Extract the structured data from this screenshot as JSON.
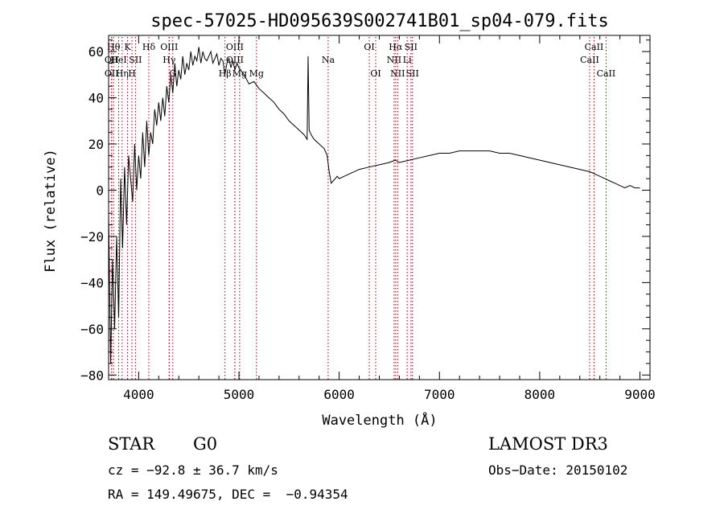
{
  "chart_data": {
    "type": "line",
    "title": "spec-57025-HD095639S002741B01_sp04-079.fits",
    "xlabel": "Wavelength (Å)",
    "ylabel": "Flux (relative)",
    "xlim": [
      3700,
      9100
    ],
    "ylim": [
      -82,
      67
    ],
    "xticks": [
      4000,
      5000,
      6000,
      7000,
      8000,
      9000
    ],
    "yticks": [
      -80,
      -60,
      -40,
      -20,
      0,
      20,
      40,
      60
    ],
    "grid": false,
    "line_color": "#000000",
    "marker_color": "#a00000",
    "series": [
      {
        "x": [
          3700,
          3720,
          3740,
          3760,
          3780,
          3800,
          3820,
          3840,
          3860,
          3880,
          3900,
          3920,
          3940,
          3960,
          3980,
          4000,
          4020,
          4040,
          4060,
          4080,
          4100,
          4120,
          4140,
          4160,
          4180,
          4200,
          4220,
          4240,
          4260,
          4280,
          4300,
          4320,
          4340,
          4360,
          4380,
          4400,
          4420,
          4440,
          4460,
          4480,
          4500,
          4520,
          4540,
          4560,
          4580,
          4600,
          4620,
          4640,
          4660,
          4680,
          4700,
          4720,
          4740,
          4760,
          4780,
          4800,
          4820,
          4840,
          4860,
          4880,
          4900,
          4920,
          4940,
          4960,
          4980,
          5000,
          5050,
          5100,
          5150,
          5200,
          5250,
          5300,
          5350,
          5400,
          5450,
          5500,
          5550,
          5600,
          5650,
          5680,
          5690,
          5700,
          5720,
          5750,
          5800,
          5850,
          5880,
          5900,
          5920,
          5940,
          5960,
          5980,
          6000,
          6050,
          6100,
          6200,
          6300,
          6400,
          6500,
          6560,
          6600,
          6700,
          6800,
          6900,
          7000,
          7100,
          7200,
          7300,
          7400,
          7500,
          7600,
          7700,
          7800,
          7900,
          8000,
          8100,
          8200,
          8300,
          8400,
          8500,
          8550,
          8600,
          8650,
          8700,
          8750,
          8800,
          8850,
          8900,
          8950,
          9000
        ],
        "y": [
          -10,
          -75,
          -30,
          -60,
          -20,
          -55,
          5,
          -25,
          10,
          -15,
          15,
          5,
          -5,
          20,
          0,
          15,
          5,
          25,
          10,
          30,
          15,
          25,
          20,
          35,
          28,
          38,
          30,
          40,
          32,
          45,
          38,
          50,
          42,
          55,
          45,
          52,
          48,
          58,
          50,
          55,
          52,
          60,
          54,
          58,
          56,
          62,
          55,
          60,
          57,
          56,
          58,
          60,
          55,
          57,
          59,
          54,
          57,
          56,
          50,
          55,
          57,
          53,
          56,
          52,
          55,
          53,
          50,
          46,
          47,
          44,
          42,
          40,
          38,
          35,
          33,
          30,
          28,
          26,
          24,
          22,
          58,
          26,
          24,
          22,
          20,
          18,
          15,
          8,
          3,
          4,
          5,
          6,
          5,
          6,
          7,
          9,
          10,
          11,
          12,
          13,
          12,
          13,
          14,
          15,
          16,
          16,
          17,
          17,
          17,
          17,
          16,
          16,
          15,
          14,
          13,
          12,
          11,
          10,
          9,
          8,
          7,
          6,
          5,
          4,
          3,
          2,
          1,
          2,
          1,
          1
        ]
      }
    ],
    "line_markers": [
      {
        "wl": 3750,
        "label": "Hθ",
        "row": 1
      },
      {
        "wl": 3730,
        "label": "OII",
        "row": 2
      },
      {
        "wl": 3730,
        "label": "OII",
        "row": 3
      },
      {
        "wl": 3800,
        "label": "HeI",
        "row": 2
      },
      {
        "wl": 3835,
        "label": "Hη",
        "row": 3
      },
      {
        "wl": 3889,
        "label": "K",
        "row": 1
      },
      {
        "wl": 3933,
        "label": "H",
        "row": 3
      },
      {
        "wl": 3968,
        "label": "SII",
        "row": 2
      },
      {
        "wl": 4101,
        "label": "Hδ",
        "row": 1
      },
      {
        "wl": 4304,
        "label": "OIII",
        "row": 1
      },
      {
        "wl": 4304,
        "label": "Hγ",
        "row": 2
      },
      {
        "wl": 4340,
        "label": "G",
        "row": 3
      },
      {
        "wl": 4861,
        "label": "Hβ",
        "row": 3
      },
      {
        "wl": 4959,
        "label": "OIII",
        "row": 1
      },
      {
        "wl": 4959,
        "label": "OIII",
        "row": 2
      },
      {
        "wl": 5007,
        "label": "Mg",
        "row": 3
      },
      {
        "wl": 5175,
        "label": "Mg",
        "row": 3
      },
      {
        "wl": 5890,
        "label": "Na",
        "row": 2
      },
      {
        "wl": 6300,
        "label": "OI",
        "row": 1
      },
      {
        "wl": 6364,
        "label": "OI",
        "row": 3
      },
      {
        "wl": 6548,
        "label": "NII",
        "row": 2
      },
      {
        "wl": 6563,
        "label": "Hα",
        "row": 1
      },
      {
        "wl": 6583,
        "label": "NII",
        "row": 3
      },
      {
        "wl": 6678,
        "label": "Li",
        "row": 2
      },
      {
        "wl": 6716,
        "label": "SII",
        "row": 1
      },
      {
        "wl": 6731,
        "label": "SII",
        "row": 3
      },
      {
        "wl": 8498,
        "label": "CaII",
        "row": 2
      },
      {
        "wl": 8542,
        "label": "CaII",
        "row": 1
      },
      {
        "wl": 8662,
        "label": "CaII",
        "row": 3
      }
    ]
  },
  "footer": {
    "object_class": "STAR",
    "subclass": "G0",
    "survey": "LAMOST DR3",
    "cz": "cz = −92.8 ± 36.7 km/s",
    "obs_date": "Obs−Date: 20150102",
    "coords": "RA = 149.49675, DEC =  −0.94354"
  }
}
